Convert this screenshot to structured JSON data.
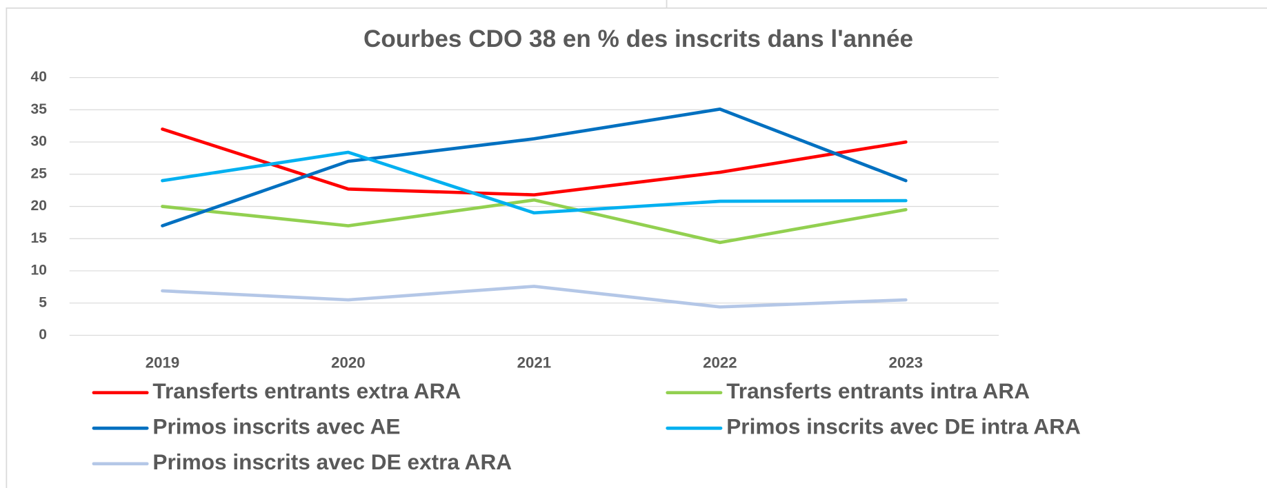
{
  "chart_data": {
    "type": "line",
    "title": "Courbes CDO 38 en % des inscrits dans l'année",
    "categories": [
      "2019",
      "2020",
      "2021",
      "2022",
      "2023"
    ],
    "series": [
      {
        "name": "Transferts entrants extra ARA",
        "color": "#ff0000",
        "values": [
          32,
          22.7,
          21.8,
          25.3,
          30
        ]
      },
      {
        "name": "Transferts entrants intra ARA",
        "color": "#92d050",
        "values": [
          20,
          17,
          21,
          14.4,
          19.5
        ]
      },
      {
        "name": "Primos inscrits avec AE",
        "color": "#0070c0",
        "values": [
          17,
          27,
          30.5,
          35.1,
          24
        ]
      },
      {
        "name": "Primos inscrits avec DE intra ARA",
        "color": "#00b0f0",
        "values": [
          24,
          28.4,
          19,
          20.8,
          20.9
        ]
      },
      {
        "name": "Primos inscrits avec DE extra ARA",
        "color": "#b4c7e7",
        "values": [
          6.9,
          5.5,
          7.6,
          4.4,
          5.5
        ]
      }
    ],
    "ylim": [
      0,
      40
    ],
    "yticks": [
      0,
      5,
      10,
      15,
      20,
      25,
      30,
      35,
      40
    ],
    "grid": true,
    "legend": "bottom"
  }
}
